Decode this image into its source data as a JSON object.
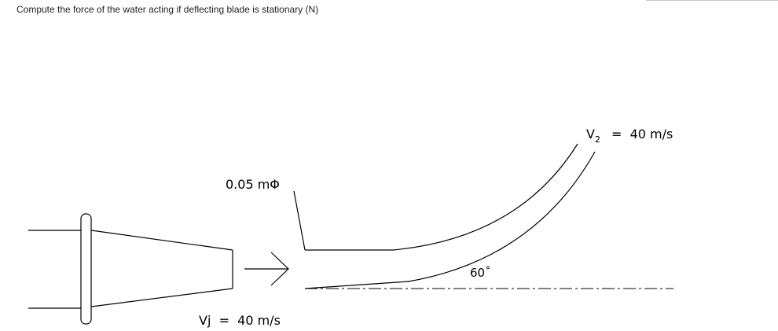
{
  "question": "Compute the force of the water acting if deflecting blade is stationary (N)",
  "labels": {
    "diameter": "0.05 mΦ",
    "jet_velocity": "Vj  =  40 m/s",
    "exit_velocity_symbol": "V",
    "exit_velocity_subscript": "2",
    "exit_velocity_value": "=  40 m/s",
    "angle": "60˚"
  }
}
